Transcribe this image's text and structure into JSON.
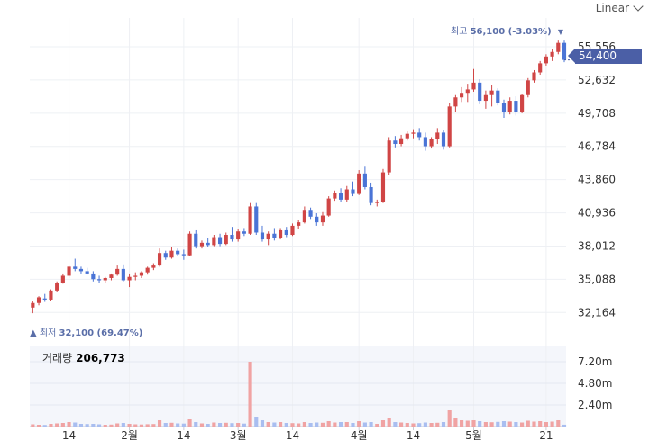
{
  "scale_selector": {
    "label": "Linear"
  },
  "current_price": "54,400",
  "high_marker": {
    "prefix": "최고",
    "value": "56,100 (-3.03%)"
  },
  "low_marker": {
    "prefix": "최저",
    "value": "32,100 (69.47%)"
  },
  "volume_label": {
    "prefix": "거래량",
    "value": "206,773"
  },
  "colors": {
    "up": "#d04545",
    "down": "#4a74d6",
    "accent": "#4b5fa6",
    "vol_up": "#f0a3a3",
    "vol_down": "#a9bef0"
  },
  "chart_data": {
    "type": "candlestick",
    "price_axis": {
      "ticks": [
        "55,556",
        "52,632",
        "49,708",
        "46,784",
        "43,860",
        "40,936",
        "38,012",
        "35,088",
        "32,164"
      ],
      "tick_values": [
        55556,
        52632,
        49708,
        46784,
        43860,
        40936,
        38012,
        35088,
        32164
      ],
      "range": [
        31000,
        57300
      ]
    },
    "volume_axis": {
      "ticks": [
        "7.20m",
        "4.80m",
        "2.40m"
      ],
      "tick_values": [
        7200000,
        4800000,
        2400000
      ],
      "range": [
        0,
        9000000
      ]
    },
    "x_labels": [
      {
        "label": "14",
        "index": 6
      },
      {
        "label": "2월",
        "index": 16
      },
      {
        "label": "14",
        "index": 25
      },
      {
        "label": "3월",
        "index": 34
      },
      {
        "label": "14",
        "index": 43
      },
      {
        "label": "4월",
        "index": 54
      },
      {
        "label": "14",
        "index": 63
      },
      {
        "label": "5월",
        "index": 73
      },
      {
        "label": "21",
        "index": 85
      }
    ],
    "candles": [
      [
        32600,
        33200,
        32100,
        33000,
        250000
      ],
      [
        33000,
        33600,
        32800,
        33500,
        200000
      ],
      [
        33400,
        33800,
        33100,
        33300,
        180000
      ],
      [
        33300,
        34200,
        33200,
        34100,
        300000
      ],
      [
        34100,
        34900,
        34000,
        34800,
        350000
      ],
      [
        34800,
        35600,
        34700,
        35400,
        400000
      ],
      [
        35400,
        36300,
        35200,
        36200,
        500000
      ],
      [
        36200,
        36900,
        35800,
        36000,
        450000
      ],
      [
        36000,
        36200,
        35600,
        35800,
        300000
      ],
      [
        35800,
        36100,
        35500,
        35600,
        280000
      ],
      [
        35600,
        35800,
        34900,
        35100,
        300000
      ],
      [
        35100,
        35400,
        34800,
        35000,
        250000
      ],
      [
        35000,
        35300,
        34800,
        35200,
        200000
      ],
      [
        35200,
        35600,
        35000,
        35500,
        220000
      ],
      [
        35500,
        36300,
        35400,
        36000,
        350000
      ],
      [
        36000,
        36400,
        34900,
        35000,
        400000
      ],
      [
        35000,
        35600,
        34400,
        35300,
        300000
      ],
      [
        35300,
        35700,
        35000,
        35400,
        250000
      ],
      [
        35400,
        35800,
        35200,
        35700,
        230000
      ],
      [
        35700,
        36200,
        35500,
        36100,
        260000
      ],
      [
        36100,
        36500,
        35900,
        36300,
        280000
      ],
      [
        36300,
        37800,
        36200,
        37400,
        700000
      ],
      [
        37400,
        37600,
        36800,
        37000,
        400000
      ],
      [
        37000,
        37900,
        36900,
        37600,
        420000
      ],
      [
        37600,
        37800,
        37100,
        37300,
        350000
      ],
      [
        37300,
        37700,
        36800,
        37200,
        330000
      ],
      [
        37200,
        39300,
        37100,
        39100,
        800000
      ],
      [
        39100,
        39400,
        37800,
        38000,
        500000
      ],
      [
        38000,
        38500,
        37800,
        38300,
        350000
      ],
      [
        38300,
        38700,
        37900,
        38100,
        300000
      ],
      [
        38100,
        39000,
        38000,
        38800,
        450000
      ],
      [
        38800,
        39100,
        38000,
        38200,
        400000
      ],
      [
        38200,
        39200,
        38100,
        39000,
        420000
      ],
      [
        39000,
        39700,
        38400,
        38600,
        380000
      ],
      [
        38600,
        39500,
        38400,
        39300,
        400000
      ],
      [
        39300,
        39600,
        38900,
        39100,
        330000
      ],
      [
        39100,
        41800,
        39000,
        41500,
        7200000
      ],
      [
        41500,
        41800,
        39000,
        39200,
        1100000
      ],
      [
        39200,
        39800,
        38400,
        38600,
        700000
      ],
      [
        38600,
        39300,
        38100,
        39100,
        500000
      ],
      [
        39100,
        39600,
        38500,
        38700,
        450000
      ],
      [
        38700,
        39600,
        38600,
        39400,
        500000
      ],
      [
        39400,
        39700,
        38800,
        39000,
        400000
      ],
      [
        39000,
        40000,
        38900,
        39800,
        380000
      ],
      [
        39800,
        40300,
        39500,
        40100,
        350000
      ],
      [
        40100,
        41500,
        40000,
        41200,
        500000
      ],
      [
        41200,
        41400,
        40400,
        40600,
        400000
      ],
      [
        40600,
        40900,
        39800,
        40100,
        450000
      ],
      [
        40100,
        41000,
        39800,
        40700,
        420000
      ],
      [
        40700,
        42400,
        40600,
        42200,
        600000
      ],
      [
        42200,
        42900,
        42000,
        42700,
        450000
      ],
      [
        42700,
        43100,
        41900,
        42100,
        500000
      ],
      [
        42100,
        43300,
        41900,
        43000,
        500000
      ],
      [
        43000,
        43700,
        42400,
        42600,
        400000
      ],
      [
        42600,
        44700,
        42500,
        44400,
        600000
      ],
      [
        44400,
        45000,
        43000,
        43200,
        450000
      ],
      [
        43200,
        43600,
        41600,
        41800,
        500000
      ],
      [
        41800,
        42100,
        41500,
        41900,
        300000
      ],
      [
        41900,
        44800,
        41800,
        44500,
        700000
      ],
      [
        44500,
        47600,
        44300,
        47300,
        900000
      ],
      [
        47300,
        47700,
        46700,
        47000,
        500000
      ],
      [
        47000,
        47800,
        46800,
        47500,
        450000
      ],
      [
        47500,
        48100,
        47300,
        47900,
        400000
      ],
      [
        47900,
        48300,
        47500,
        48000,
        350000
      ],
      [
        48000,
        48400,
        47300,
        47600,
        380000
      ],
      [
        47600,
        48000,
        46400,
        46800,
        450000
      ],
      [
        46800,
        47600,
        46600,
        47400,
        400000
      ],
      [
        47400,
        48400,
        47000,
        48000,
        420000
      ],
      [
        48000,
        48200,
        46500,
        46800,
        500000
      ],
      [
        46800,
        50600,
        46700,
        50300,
        1800000
      ],
      [
        50300,
        51300,
        49800,
        51100,
        900000
      ],
      [
        51100,
        52000,
        50700,
        51500,
        700000
      ],
      [
        51500,
        52300,
        50700,
        51800,
        650000
      ],
      [
        51800,
        53600,
        51600,
        52400,
        700000
      ],
      [
        52400,
        52700,
        50500,
        50800,
        600000
      ],
      [
        50800,
        51700,
        50100,
        51300,
        500000
      ],
      [
        51300,
        52200,
        50300,
        51700,
        480000
      ],
      [
        51700,
        51900,
        50400,
        50600,
        520000
      ],
      [
        50600,
        50900,
        49300,
        49800,
        600000
      ],
      [
        49800,
        51100,
        49600,
        50800,
        550000
      ],
      [
        50800,
        51200,
        49500,
        49800,
        500000
      ],
      [
        49800,
        51400,
        49700,
        51300,
        450000
      ],
      [
        51300,
        52800,
        51100,
        52600,
        650000
      ],
      [
        52600,
        53500,
        52400,
        53300,
        550000
      ],
      [
        53300,
        54300,
        53100,
        54100,
        600000
      ],
      [
        54100,
        54900,
        53900,
        54700,
        500000
      ],
      [
        54700,
        55400,
        54300,
        55100,
        550000
      ],
      [
        55100,
        56100,
        54900,
        55900,
        700000
      ],
      [
        55900,
        56100,
        54200,
        54400,
        206773
      ]
    ]
  }
}
